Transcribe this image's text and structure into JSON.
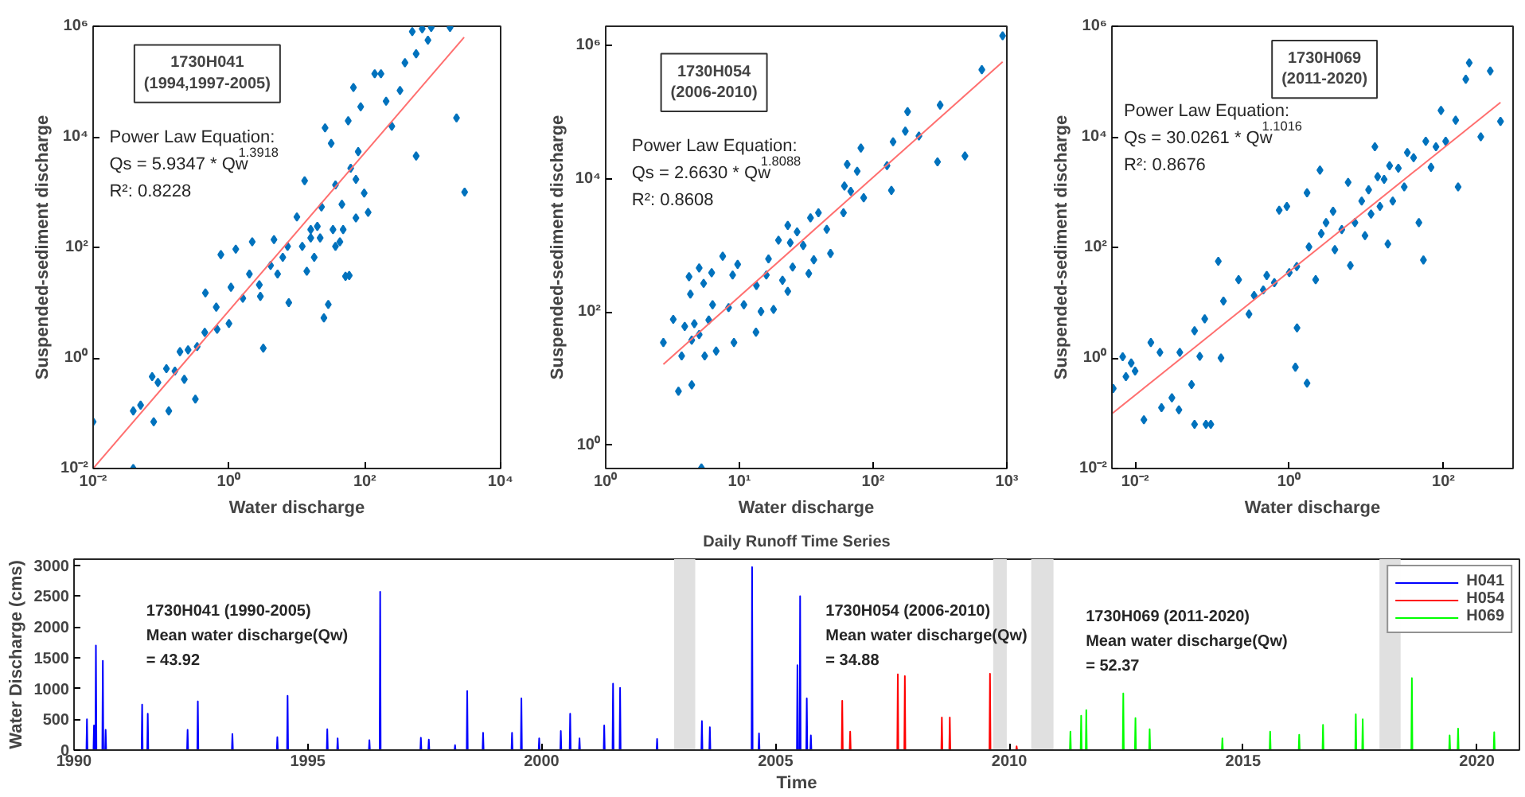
{
  "chart_data": [
    {
      "type": "scatter",
      "xlabel": "Water discharge",
      "ylabel": "Suspended-sediment discharge",
      "log": "xy",
      "grid": false,
      "xlim": [
        0.01,
        10000
      ],
      "ylim": [
        0.01,
        1000000
      ],
      "xticks": [
        {
          "value": 0.01,
          "label": "10⁻²"
        },
        {
          "value": 1,
          "label": "10⁰"
        },
        {
          "value": 100,
          "label": "10²"
        },
        {
          "value": 10000,
          "label": "10⁴"
        }
      ],
      "yticks": [
        {
          "value": 0.01,
          "label": "10⁻²"
        },
        {
          "value": 1,
          "label": "10⁰"
        },
        {
          "value": 100,
          "label": "10²"
        },
        {
          "value": 10000,
          "label": "10⁴"
        },
        {
          "value": 1000000,
          "label": "10⁶"
        }
      ],
      "annotations": [
        "1730H041\n(1994,1997-2005)",
        "Power Law Equation:\nQs = 5.9347 * Qw$^{1.3918}$\nR²: 0.8228"
      ],
      "series": [
        {
          "type": "scatter",
          "marker": "diamond",
          "color": "#0072bd",
          "x": [
            0.01,
            0.039,
            0.039,
            0.05,
            0.074,
            0.078,
            0.09,
            0.12,
            0.13,
            0.16,
            0.19,
            0.22,
            0.25,
            0.32,
            0.34,
            0.44,
            0.45,
            0.65,
            0.67,
            0.76,
            1.0,
            1.07,
            1.26,
            1.6,
            2.0,
            2.2,
            2.8,
            3.2,
            2.9,
            4.1,
            4.6,
            5.2,
            6.2,
            7.3,
            7.6,
            10,
            12,
            13,
            14,
            16,
            18,
            20,
            23,
            25,
            26,
            29,
            32,
            34,
            37,
            43,
            46,
            52,
            57,
            62,
            68,
            74,
            80,
            87,
            98,
            112,
            140,
            173,
            206,
            250,
            330,
            390,
            500,
            570,
            700,
            850,
            950,
            1800,
            2240,
            570,
            2950,
            59,
            16,
            22,
            37,
            48,
            74
          ],
          "values": [
            0.07,
            0.01,
            0.11,
            0.14,
            0.46,
            0.07,
            0.36,
            0.64,
            0.11,
            0.58,
            1.3,
            0.41,
            1.4,
            0.18,
            1.6,
            2.9,
            15,
            8.3,
            3.3,
            74,
            4.2,
            19,
            93,
            12,
            33,
            126,
            21,
            1.5,
            13,
            47,
            138,
            33,
            66,
            104,
            10,
            355,
            104,
            1600,
            37,
            148,
            66,
            240,
            540,
            5.3,
            14500,
            9.3,
            7600,
            210,
            1350,
            126,
            600,
            30,
            19500,
            2700,
            78000,
            340,
            5400,
            35000,
            960,
            430,
            138000,
            138000,
            44000,
            15500,
            69000,
            219000,
            800000,
            318000,
            900000,
            560000,
            950000,
            950000,
            22000,
            4500,
            1000,
            31,
            210,
            148,
            104,
            210,
            1700
          ]
        },
        {
          "type": "line",
          "color": "#ff6f6f",
          "x": [
            0.01,
            2900
          ],
          "values": [
            0.01,
            630000
          ]
        }
      ]
    },
    {
      "type": "scatter",
      "xlabel": "Water discharge",
      "ylabel": "Suspended-sediment discharge",
      "log": "xy",
      "grid": false,
      "xlim": [
        1,
        1000
      ],
      "ylim": [
        0.45,
        1950000
      ],
      "xticks": [
        {
          "value": 1,
          "label": "10⁰"
        },
        {
          "value": 10,
          "label": "10¹"
        },
        {
          "value": 100,
          "label": "10²"
        },
        {
          "value": 1000,
          "label": "10³"
        }
      ],
      "yticks": [
        {
          "value": 1,
          "label": "10⁰"
        },
        {
          "value": 100,
          "label": "10²"
        },
        {
          "value": 10000,
          "label": "10⁴"
        },
        {
          "value": 1000000,
          "label": "10⁶"
        }
      ],
      "annotations": [
        "1730H054\n(2006-2010)",
        "Power Law Equation:\nQs = 2.6630 * Qw$^{1.8088}$\nR²: 0.8608"
      ],
      "series": [
        {
          "type": "scatter",
          "marker": "diamond",
          "color": "#0072bd",
          "x": [
            2.7,
            3.2,
            3.5,
            3.7,
            3.9,
            4.2,
            4.3,
            4.4,
            4.4,
            4.6,
            5.0,
            5.0,
            5.2,
            5.4,
            5.5,
            5.9,
            6.2,
            6.3,
            6.7,
            7.5,
            8.3,
            8.9,
            9.1,
            9.7,
            10.8,
            13.3,
            13.4,
            14.5,
            15.9,
            16.5,
            18,
            19.6,
            21,
            23,
            23,
            24,
            25,
            27,
            30,
            33,
            34,
            36,
            39,
            45,
            48,
            60,
            61,
            64,
            68,
            76,
            81,
            85,
            127,
            137,
            141,
            174,
            181,
            220,
            303,
            317,
            486,
            650,
            930
          ],
          "values": [
            35,
            78,
            6.5,
            22,
            61,
            340,
            186,
            38,
            8.1,
            67,
            46,
            460,
            0.46,
            270,
            22,
            76,
            390,
            129,
            26,
            690,
            117,
            360,
            35,
            520,
            129,
            50,
            250,
            102,
            360,
            630,
            110,
            1200,
            300,
            205,
            2000,
            1100,
            475,
            1600,
            1000,
            380,
            2600,
            610,
            3100,
            1750,
            760,
            3100,
            7800,
            16500,
            6500,
            13000,
            29000,
            5200,
            15800,
            6700,
            36000,
            52000,
            102000,
            44000,
            18000,
            128000,
            22000,
            435000,
            1400000
          ]
        },
        {
          "type": "line",
          "color": "#ff6f6f",
          "x": [
            2.7,
            930
          ],
          "values": [
            16.5,
            570000
          ]
        }
      ]
    },
    {
      "type": "scatter",
      "xlabel": "Water discharge",
      "ylabel": "Suspended-sediment discharge",
      "log": "xy",
      "grid": false,
      "xlim": [
        0.005,
        800
      ],
      "ylim": [
        0.01,
        1000000
      ],
      "xticks": [
        {
          "value": 0.01,
          "label": "10⁻²"
        },
        {
          "value": 1,
          "label": "10⁰"
        },
        {
          "value": 100,
          "label": "10²"
        }
      ],
      "yticks": [
        {
          "value": 0.01,
          "label": "10⁻²"
        },
        {
          "value": 1,
          "label": "10⁰"
        },
        {
          "value": 100,
          "label": "10²"
        },
        {
          "value": 10000,
          "label": "10⁴"
        },
        {
          "value": 1000000,
          "label": "10⁶"
        }
      ],
      "annotations": [
        "1730H069\n(2011-2020)",
        "Power Law Equation:\nQs = 30.0261 * Qw$^{1.1016}$\nR²: 0.8676"
      ],
      "series": [
        {
          "type": "scatter",
          "marker": "diamond",
          "color": "#0072bd",
          "x": [
            0.0052,
            0.0069,
            0.0076,
            0.0089,
            0.01,
            0.013,
            0.016,
            0.021,
            0.022,
            0.03,
            0.037,
            0.038,
            0.054,
            0.059,
            0.059,
            0.069,
            0.08,
            0.083,
            0.096,
            0.12,
            0.13,
            0.14,
            0.22,
            0.3,
            0.35,
            0.46,
            0.51,
            0.64,
            0.74,
            0.93,
            1.0,
            1.2,
            1.25,
            1.26,
            1.7,
            1.7,
            1.8,
            2.2,
            2.5,
            2.6,
            3.0,
            3.7,
            3.9,
            4.8,
            5.8,
            6.2,
            7.1,
            8.7,
            9.6,
            10.7,
            11.5,
            12.9,
            14,
            15,
            17,
            19,
            20,
            22,
            26,
            31,
            34,
            41,
            48,
            55,
            59,
            69,
            80,
            93,
            107,
            144,
            155,
            195,
            216,
            305,
            405,
            550
          ],
          "values": [
            0.28,
            1.05,
            0.46,
            0.81,
            0.58,
            0.076,
            1.9,
            1.26,
            0.126,
            0.19,
            0.115,
            1.26,
            0.33,
            0.063,
            3.1,
            1.07,
            5.1,
            0.063,
            0.063,
            56,
            1.0,
            10.7,
            26,
            6.2,
            13.5,
            17,
            31,
            23,
            470,
            550,
            35,
            0.68,
            45,
            3.5,
            0.35,
            970,
            102,
            26,
            2500,
            178,
            280,
            450,
            91,
            210,
            1500,
            47,
            280,
            690,
            163,
            1100,
            400,
            6600,
            1900,
            550,
            1700,
            115,
            3000,
            690,
            2700,
            1240,
            5200,
            4200,
            280,
            59,
            8300,
            2800,
            6600,
            30000,
            8300,
            20000,
            1240,
            110000,
            218000,
            10000,
            155000,
            19000
          ]
        },
        {
          "type": "line",
          "color": "#ff6f6f",
          "x": [
            0.0051,
            550
          ],
          "values": [
            0.1,
            42000
          ]
        }
      ]
    },
    {
      "type": "line",
      "title": "Daily Runoff Time Series",
      "xlabel": "Time",
      "ylabel": "Water Discharge (cms)",
      "grid": false,
      "legend": "top right",
      "line_style": "solid",
      "xlim": [
        "1990-01-01",
        "2020-11-28"
      ],
      "ylim": [
        0,
        3100
      ],
      "xticks": [
        "1990",
        "1995",
        "2000",
        "2005",
        "2010",
        "2015",
        "2020"
      ],
      "yticks": [
        0,
        500,
        1000,
        1500,
        2000,
        2500,
        3000
      ],
      "annotations": [
        "1730H041 (1990-2005)\nMean water discharge(Qw)\n= 43.92",
        "1730H054 (2006-2010)\nMean water discharge(Qw)\n = 34.88",
        "1730H069 (2011-2020)\nMean water discharge(Qw)\n = 52.37"
      ],
      "bands": [
        {
          "axis": "x",
          "from": "2002-11-01",
          "to": "2003-04-15",
          "color": "#e0e0e0"
        },
        {
          "axis": "x",
          "from": "2009-08-28",
          "to": "2009-12-12",
          "color": "#e0e0e0"
        },
        {
          "axis": "x",
          "from": "2010-06-21",
          "to": "2010-12-12",
          "color": "#e0e0e0"
        },
        {
          "axis": "x",
          "from": "2017-12-01",
          "to": "2018-05-15",
          "color": "#e0e0e0"
        }
      ],
      "series": [
        {
          "name": "H041",
          "color": "#0000ff",
          "x": [
            "1990-01-01",
            "1990-04-08",
            "1990-04-12",
            "1990-04-16",
            "1990-06-02",
            "1990-06-06",
            "1990-06-10",
            "1990-06-17",
            "1990-06-21",
            "1990-06-25",
            "1990-08-10",
            "1990-08-14",
            "1990-08-18",
            "1990-09-01",
            "1990-09-05",
            "1990-09-09",
            "1991-06-13",
            "1991-06-17",
            "1991-06-21",
            "1991-07-27",
            "1991-07-31",
            "1991-08-04",
            "1992-06-02",
            "1992-06-06",
            "1992-06-10",
            "1992-08-21",
            "1992-08-25",
            "1992-08-29",
            "1993-05-18",
            "1993-05-22",
            "1993-05-26",
            "1994-05-04",
            "1994-05-08",
            "1994-05-12",
            "1994-07-23",
            "1994-07-27",
            "1994-07-31",
            "1995-05-29",
            "1995-06-02",
            "1995-06-06",
            "1995-08-18",
            "1995-08-22",
            "1995-08-26",
            "1996-04-22",
            "1996-04-26",
            "1996-04-30",
            "1996-07-15",
            "1996-07-19",
            "1996-07-23",
            "1997-05-29",
            "1997-06-02",
            "1997-06-06",
            "1997-07-30",
            "1997-08-03",
            "1997-08-07",
            "1998-02-20",
            "1998-02-24",
            "1998-02-28",
            "1998-05-26",
            "1998-05-30",
            "1998-06-03",
            "1998-09-27",
            "1998-10-01",
            "1998-10-05",
            "1999-05-11",
            "1999-05-15",
            "1999-05-19",
            "1999-07-23",
            "1999-07-27",
            "1999-07-31",
            "1999-12-09",
            "1999-12-13",
            "1999-12-17",
            "2000-05-26",
            "2000-05-30",
            "2000-06-03",
            "2000-08-07",
            "2000-08-11",
            "2000-08-15",
            "2000-10-19",
            "2000-10-23",
            "2000-10-27",
            "2001-04-30",
            "2001-05-04",
            "2001-05-08",
            "2001-07-08",
            "2001-07-12",
            "2001-07-16",
            "2001-09-01",
            "2001-09-05",
            "2001-09-09",
            "2002-06-17",
            "2002-06-21",
            "2002-06-25",
            "2002-10-31",
            "2003-04-16",
            "2003-06-02",
            "2003-06-06",
            "2003-06-10",
            "2003-08-03",
            "2003-08-07",
            "2003-08-11",
            "2004-06-28",
            "2004-07-02",
            "2004-07-06",
            "2004-08-21",
            "2004-08-25",
            "2004-08-29",
            "2005-06-17",
            "2005-06-21",
            "2005-06-25",
            "2005-07-08",
            "2005-07-12",
            "2005-07-16",
            "2005-08-29",
            "2005-09-02",
            "2005-09-06",
            "2005-09-30",
            "2005-10-04",
            "2005-10-08",
            "2005-12-31"
          ],
          "values": [
            0,
            0,
            500,
            0,
            0,
            400,
            0,
            0,
            1700,
            0,
            0,
            1450,
            0,
            0,
            330,
            0,
            0,
            740,
            0,
            0,
            590,
            0,
            0,
            330,
            0,
            0,
            790,
            0,
            0,
            260,
            0,
            0,
            210,
            0,
            0,
            880,
            0,
            0,
            340,
            0,
            0,
            190,
            0,
            0,
            160,
            0,
            0,
            2570,
            0,
            0,
            200,
            0,
            0,
            170,
            0,
            0,
            80,
            0,
            0,
            960,
            0,
            0,
            280,
            0,
            0,
            280,
            0,
            0,
            840,
            0,
            0,
            190,
            0,
            0,
            310,
            0,
            0,
            590,
            0,
            0,
            190,
            0,
            0,
            400,
            0,
            0,
            1080,
            0,
            0,
            1010,
            0,
            0,
            180,
            0,
            0,
            null,
            0,
            470,
            0,
            0,
            370,
            0,
            0,
            2970,
            0,
            0,
            270,
            0,
            0,
            1380,
            0,
            0,
            2500,
            0,
            0,
            840,
            0,
            0,
            240,
            0,
            0
          ]
        },
        {
          "name": "H054",
          "color": "#ff0000",
          "x": [
            "2006-01-01",
            "2006-06-02",
            "2006-06-06",
            "2006-06-10",
            "2006-08-03",
            "2006-08-07",
            "2006-08-11",
            "2007-08-10",
            "2007-08-14",
            "2007-08-18",
            "2007-10-04",
            "2007-10-08",
            "2007-10-12",
            "2008-07-19",
            "2008-07-23",
            "2008-07-27",
            "2008-09-19",
            "2008-09-23",
            "2008-09-27",
            "2009-07-30",
            "2009-08-03",
            "2009-08-07",
            "2009-08-27",
            "2009-12-13",
            "2010-02-23",
            "2010-02-27",
            "2010-03-03",
            "2010-06-20"
          ],
          "values": [
            0,
            0,
            800,
            0,
            0,
            300,
            0,
            0,
            1230,
            0,
            0,
            1200,
            0,
            0,
            530,
            0,
            0,
            530,
            0,
            0,
            1240,
            0,
            0,
            null,
            0,
            60,
            0,
            0
          ]
        },
        {
          "name": "H069",
          "color": "#00ff00",
          "x": [
            "2010-12-13",
            "2011-04-19",
            "2011-04-23",
            "2011-04-27",
            "2011-07-12",
            "2011-07-16",
            "2011-07-20",
            "2011-08-21",
            "2011-08-25",
            "2011-08-29",
            "2012-06-05",
            "2012-06-09",
            "2012-06-13",
            "2012-09-08",
            "2012-09-12",
            "2012-09-16",
            "2012-12-28",
            "2013-01-01",
            "2013-01-05",
            "2014-07-19",
            "2014-07-23",
            "2014-07-27",
            "2015-07-27",
            "2015-07-31",
            "2015-08-04",
            "2016-03-10",
            "2016-03-14",
            "2016-03-18",
            "2016-09-12",
            "2016-09-16",
            "2016-09-20",
            "2017-05-26",
            "2017-05-30",
            "2017-06-03",
            "2017-07-19",
            "2017-07-23",
            "2017-07-27",
            "2017-11-30",
            "2018-05-16",
            "2018-08-07",
            "2018-08-11",
            "2018-08-15",
            "2019-05-29",
            "2019-06-02",
            "2019-06-06",
            "2019-08-03",
            "2019-08-07",
            "2019-08-11",
            "2020-05-11",
            "2020-05-15",
            "2020-05-19",
            "2020-11-28"
          ],
          "values": [
            0,
            0,
            300,
            0,
            0,
            560,
            0,
            0,
            650,
            0,
            0,
            920,
            0,
            0,
            520,
            0,
            0,
            340,
            0,
            0,
            190,
            0,
            0,
            300,
            0,
            0,
            250,
            0,
            0,
            410,
            0,
            0,
            580,
            0,
            0,
            500,
            0,
            0,
            null,
            0,
            1170,
            0,
            0,
            240,
            0,
            0,
            350,
            0,
            0,
            290,
            0,
            0
          ]
        }
      ]
    }
  ]
}
